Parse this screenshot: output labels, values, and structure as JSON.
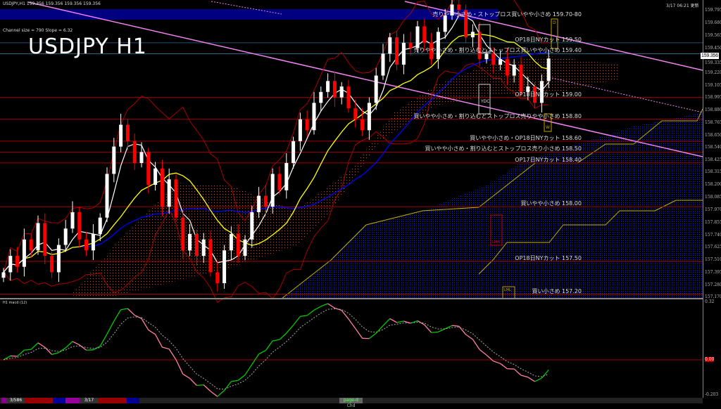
{
  "header": {
    "symbol_info": "USDJPY,H1  159.356 159.356 159.356 159.356",
    "channel_info": "Channel size = 790 Slope = 6.32",
    "big_title": "USDJPY H1",
    "updated": "3/17 06:21 更新",
    "current_price": "159.356"
  },
  "levels": [
    {
      "label": "売りやや小さめ・ストップロス買いやや小さめ 159.70-80",
      "price": 159.75,
      "color": "#000080",
      "band": true
    },
    {
      "label": "OP18日NYカット 159.50",
      "price": 159.5,
      "color": "#1f4f6f"
    },
    {
      "label": "売りやや小さめ・割り込むとストップロス買いやや小さめ 159.40",
      "price": 159.4,
      "color": "#3a6a8a"
    },
    {
      "label": "OP18日NYカット 159.00",
      "price": 159.0,
      "color": "#a00000"
    },
    {
      "label": "買いやや小さめ・割り込むとストップロス売りやや小さめ 158.80",
      "price": 158.8,
      "color": "#a00000"
    },
    {
      "label": "買いやや小さめ・OP18日NYカット 158.60",
      "price": 158.6,
      "color": "#a00000"
    },
    {
      "label": "買いやや小さめ・割り込むとストップロス売り小さめ 158.50",
      "price": 158.5,
      "color": "#a00000"
    },
    {
      "label": "OP17日NYカット 158.40",
      "price": 158.4,
      "color": "#a00000"
    },
    {
      "label": "買いやや小さめ 158.00",
      "price": 158.0,
      "color": "#a00000"
    },
    {
      "label": "OP18日NYカット 157.50",
      "price": 157.5,
      "color": "#a00000"
    },
    {
      "label": "買い小さめ 157.20",
      "price": 157.2,
      "color": "#a00000"
    }
  ],
  "markers": {
    "ydc": "YDC",
    "lmh": "LMH",
    "lml": "LML",
    "w": "W",
    "d": "D"
  },
  "chart_data": {
    "type": "candlestick",
    "symbol": "USDJPY",
    "timeframe": "H1",
    "price_axis_ticks": [
      "159.795",
      "159.680",
      "159.565",
      "159.450",
      "159.335",
      "159.220",
      "159.105",
      "158.995",
      "158.880",
      "158.765",
      "158.650",
      "158.540",
      "158.425",
      "158.315",
      "158.200",
      "158.085",
      "157.970",
      "157.855",
      "157.740",
      "157.625",
      "157.510",
      "157.395",
      "157.280",
      "157.170"
    ],
    "ylim": [
      157.17,
      159.83
    ],
    "closes": [
      157.4,
      157.55,
      157.45,
      157.7,
      157.6,
      157.85,
      157.55,
      157.4,
      157.65,
      157.8,
      157.95,
      157.7,
      157.6,
      157.75,
      157.9,
      158.3,
      158.55,
      158.75,
      158.6,
      158.4,
      158.5,
      158.2,
      158.35,
      158.0,
      158.25,
      157.9,
      157.6,
      157.75,
      157.55,
      157.7,
      157.4,
      157.3,
      157.6,
      157.75,
      157.55,
      157.7,
      157.95,
      158.1,
      158.0,
      158.3,
      158.15,
      158.4,
      158.6,
      158.8,
      158.7,
      158.95,
      159.05,
      159.15,
      159.0,
      159.1,
      158.9,
      158.8,
      158.7,
      158.95,
      159.2,
      159.4,
      159.55,
      159.3,
      159.5,
      159.45,
      159.65,
      159.5,
      159.35,
      159.6,
      159.75,
      159.85,
      159.8,
      159.55,
      159.6,
      159.35,
      159.4,
      159.3,
      159.35,
      159.2,
      159.3,
      159.05,
      159.1,
      158.95,
      159.15,
      159.356
    ],
    "colors": {
      "bull": "#ffffff",
      "bear": "#ff0000",
      "ma_fast": "#ffffff",
      "ma_mid": "#ffff00",
      "ma_slow": "#0000ff",
      "bands": "#aa0000",
      "trend": "#ee82ee"
    },
    "macd": {
      "label": "H1  macd (12)",
      "ticks": [
        "0.32",
        "0.00",
        "-0.203"
      ],
      "ylim": [
        -0.203,
        0.32
      ],
      "colors": {
        "up": "#00cc00",
        "down": "#ff80a0",
        "signal": "#aaaaaa"
      }
    }
  },
  "bottom": {
    "seg1": "3/586",
    "seg2": "3/17",
    "seg3": "page-d Chd"
  }
}
